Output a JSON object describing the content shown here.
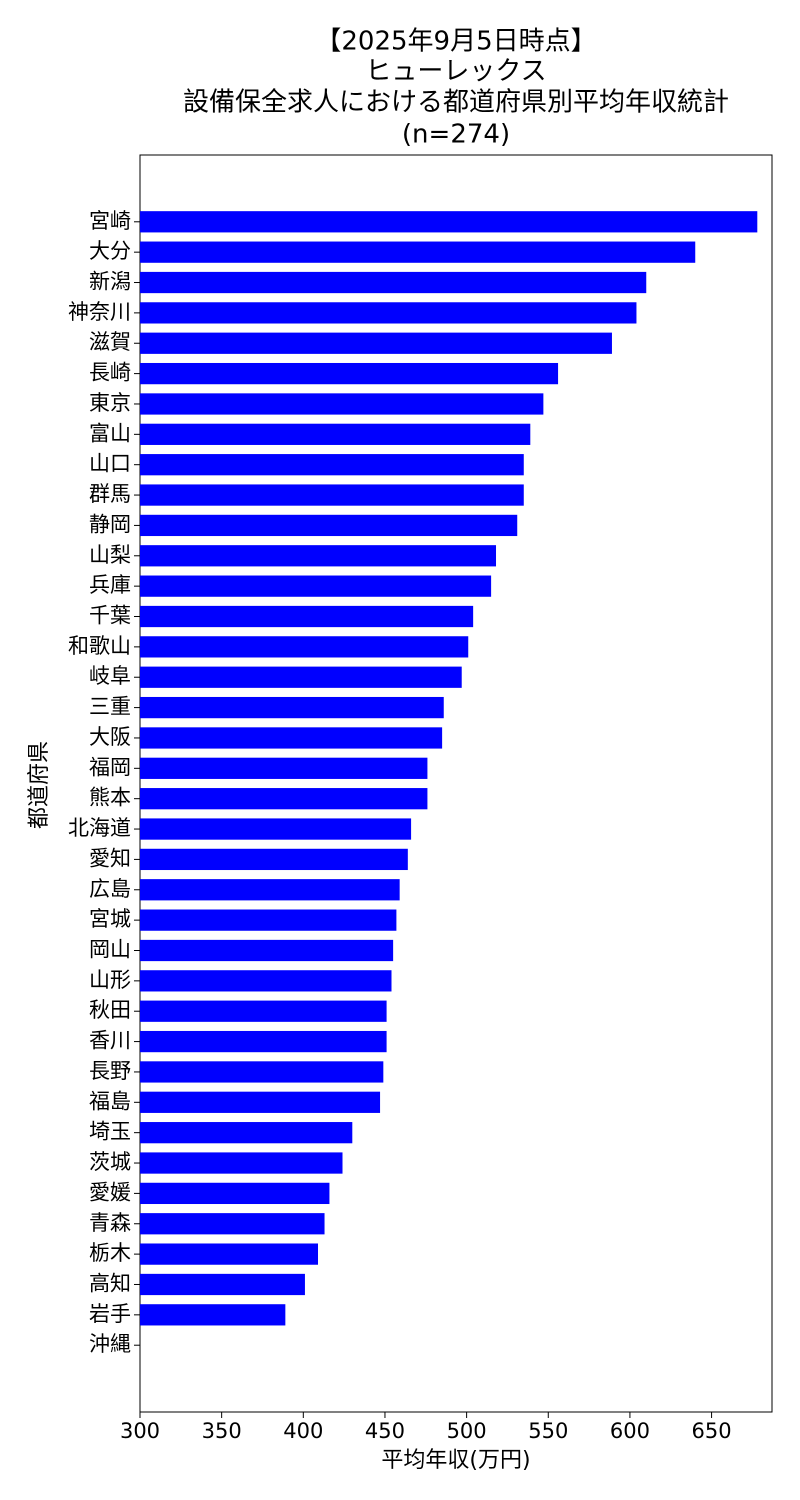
{
  "chart_data": {
    "type": "barh",
    "title": [
      "【2025年9月5日時点】",
      "ヒューレックス",
      "設備保全求人における都道府県別平均年収統計",
      "(n=274)"
    ],
    "xlabel": "平均年収(万円)",
    "ylabel": "都道府県",
    "color": "#0000ff",
    "categories": [
      "宮崎",
      "大分",
      "新潟",
      "神奈川",
      "滋賀",
      "長崎",
      "東京",
      "富山",
      "山口",
      "群馬",
      "静岡",
      "山梨",
      "兵庫",
      "千葉",
      "和歌山",
      "岐阜",
      "三重",
      "大阪",
      "福岡",
      "熊本",
      "北海道",
      "愛知",
      "広島",
      "宮城",
      "岡山",
      "山形",
      "秋田",
      "香川",
      "長野",
      "福島",
      "埼玉",
      "茨城",
      "愛媛",
      "青森",
      "栃木",
      "高知",
      "岩手",
      "沖縄"
    ],
    "values": [
      678,
      640,
      610,
      604,
      589,
      556,
      547,
      539,
      535,
      535,
      531,
      518,
      515,
      504,
      501,
      497,
      486,
      485,
      476,
      476,
      466,
      464,
      459,
      457,
      455,
      454,
      451,
      451,
      449,
      447,
      430,
      424,
      416,
      413,
      409,
      401,
      389,
      null
    ],
    "xlim": [
      300,
      687
    ],
    "xticks": [
      300,
      350,
      400,
      450,
      500,
      550,
      600,
      650
    ]
  }
}
